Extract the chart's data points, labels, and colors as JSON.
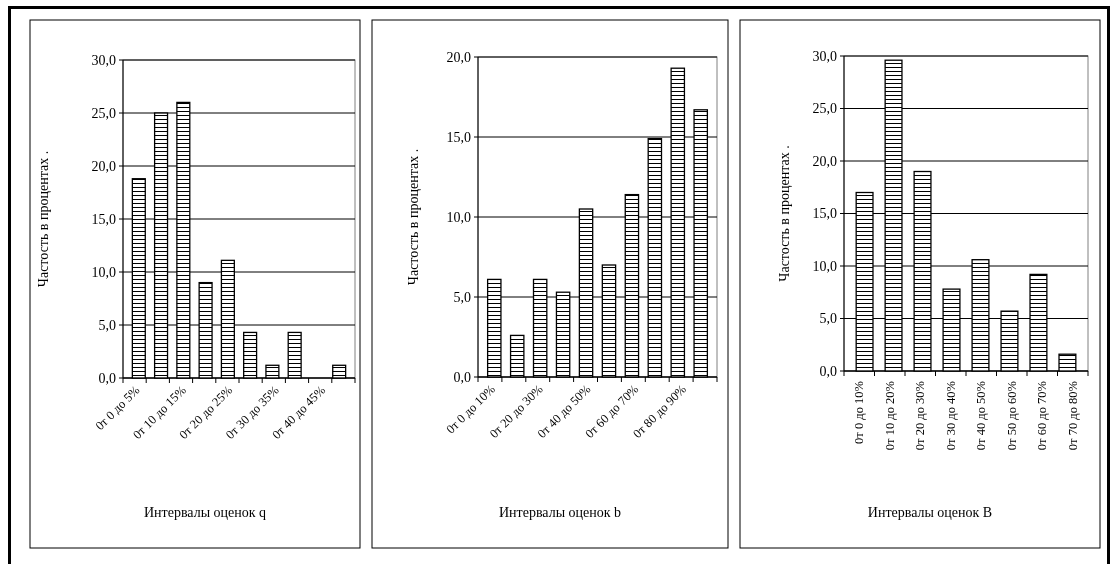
{
  "chart_data": [
    {
      "type": "bar",
      "xlabel": "Интервалы оценок q",
      "ylabel": "Частость в процентах .",
      "categories": [
        "0т 0 до 5%",
        null,
        "0т 10 до 15%",
        null,
        "0т 20 до 25%",
        null,
        "0т 30 до 35%",
        null,
        "0т 40 до 45%",
        null
      ],
      "series": [
        {
          "color": "#000000",
          "values": [
            18.8,
            25.0,
            26.0,
            9.0,
            11.1,
            4.3,
            1.2,
            4.3,
            0,
            1.2
          ]
        }
      ],
      "ylim": [
        0,
        30
      ],
      "yticks": [
        {
          "value": 0,
          "label": "0,0"
        },
        {
          "value": 5,
          "label": "5,0"
        },
        {
          "value": 10,
          "label": "10,0"
        },
        {
          "value": 15,
          "label": "15,0"
        },
        {
          "value": 20,
          "label": "20,0"
        },
        {
          "value": 25,
          "label": "25,0"
        },
        {
          "value": 30,
          "label": "30,0"
        }
      ],
      "grid": "y"
    },
    {
      "type": "bar",
      "xlabel": "Интервалы оценок b",
      "ylabel": "Частость в процентах .",
      "categories": [
        "0т 0 до 10%",
        null,
        "0т 20 до 30%",
        null,
        "0т 40 до 50%",
        null,
        "0т 60 до 70%",
        null,
        "0т 80 до 90%",
        null
      ],
      "series": [
        {
          "color": "#000000",
          "values": [
            6.1,
            2.6,
            6.1,
            5.3,
            10.5,
            7.0,
            11.4,
            14.9,
            19.3,
            16.7
          ]
        }
      ],
      "ylim": [
        0,
        20
      ],
      "yticks": [
        {
          "value": 0,
          "label": "0,0"
        },
        {
          "value": 5,
          "label": "5,0"
        },
        {
          "value": 10,
          "label": "10,0"
        },
        {
          "value": 15,
          "label": "15,0"
        },
        {
          "value": 20,
          "label": "20,0"
        }
      ],
      "grid": "y"
    },
    {
      "type": "bar",
      "xlabel": "Интервалы оценок  B",
      "ylabel": "Частость в процентах .",
      "categories": [
        "0т 0 до 10%",
        "0т 10 до 20%",
        "0т 20 до 30%",
        "0т 30 до 40%",
        "0т 40 до 50%",
        "0т 50 до 60%",
        "0т 60 до 70%",
        "0т 70 до 80%"
      ],
      "series": [
        {
          "color": "#000000",
          "values": [
            17.0,
            29.6,
            19.0,
            7.8,
            10.6,
            5.7,
            9.2,
            1.6
          ]
        }
      ],
      "ylim": [
        0,
        30
      ],
      "yticks": [
        {
          "value": 0,
          "label": "0,0"
        },
        {
          "value": 5,
          "label": "5,0"
        },
        {
          "value": 10,
          "label": "10,0"
        },
        {
          "value": 15,
          "label": "15,0"
        },
        {
          "value": 20,
          "label": "20,0"
        },
        {
          "value": 25,
          "label": "25,0"
        },
        {
          "value": 30,
          "label": "30,0"
        }
      ],
      "grid": "y"
    }
  ]
}
